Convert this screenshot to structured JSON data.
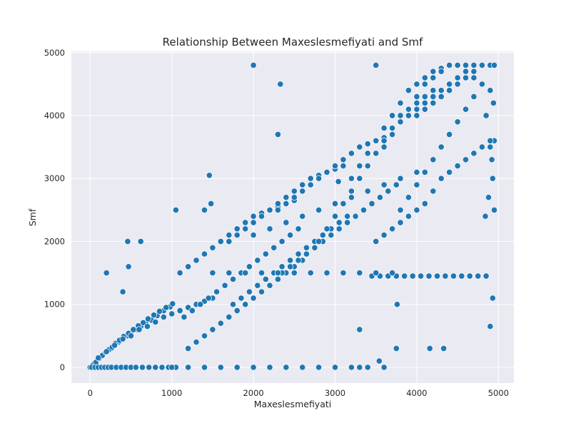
{
  "chart_data": {
    "type": "scatter",
    "title": "Relationship Between Maxeslesmefiyati and Smf",
    "xlabel": "Maxeslesmefiyati",
    "ylabel": "Smf",
    "xlim": [
      -230,
      5190
    ],
    "ylim": [
      -250,
      5020
    ],
    "xticks": [
      0,
      1000,
      2000,
      3000,
      4000,
      5000
    ],
    "yticks": [
      0,
      1000,
      2000,
      3000,
      4000,
      5000
    ],
    "grid": true,
    "legend": "none",
    "colors": {
      "point": "#1f77b4",
      "point_edge": "#ffffff",
      "background": "#eaeaf2",
      "grid": "#ffffff"
    },
    "series": [
      {
        "x": [
          0,
          40,
          90,
          120,
          160,
          200,
          260,
          300,
          350,
          400,
          450,
          500,
          560,
          620,
          680,
          750,
          820,
          900,
          980,
          30,
          70,
          110,
          150,
          190,
          230,
          270,
          310,
          360,
          410,
          470,
          530,
          590,
          650,
          710,
          780,
          850,
          930,
          1010,
          20,
          60,
          100,
          140,
          180,
          220,
          260,
          320,
          380,
          440,
          500,
          560,
          640,
          720,
          800,
          880,
          960,
          1050,
          100,
          200,
          300,
          400,
          500,
          600,
          700,
          800,
          900,
          1000,
          1100,
          1200,
          1300,
          1400,
          1500,
          1100,
          1200,
          1300,
          1400,
          1500,
          1600,
          1700,
          1800,
          1900,
          2000,
          2100,
          2200,
          2300,
          2400,
          2500,
          1150,
          1250,
          1350,
          1450,
          1550,
          1650,
          1750,
          1850,
          1950,
          2050,
          2150,
          2250,
          2350,
          2450,
          2550,
          1200,
          1300,
          1400,
          1500,
          1600,
          1700,
          1800,
          1900,
          2000,
          2100,
          2200,
          2300,
          2400,
          2500,
          2600,
          1700,
          1800,
          1900,
          2000,
          2100,
          2200,
          2300,
          2400,
          2500,
          2600,
          2700,
          2800,
          2900,
          3000,
          3100,
          1750,
          1850,
          1950,
          2050,
          2150,
          2250,
          2350,
          2450,
          2550,
          2650,
          2750,
          2850,
          2950,
          3050,
          3150,
          2300,
          2400,
          2500,
          2600,
          2700,
          2800,
          2900,
          3000,
          3100,
          3200,
          3300,
          3400,
          3500,
          3600,
          3700,
          2350,
          2450,
          2550,
          2650,
          2750,
          2850,
          2950,
          3050,
          3150,
          3250,
          3350,
          3450,
          3550,
          3650,
          3750,
          2800,
          2900,
          3000,
          3100,
          3200,
          3300,
          3400,
          3500,
          3600,
          3700,
          3800,
          3900,
          4000,
          4100,
          4200,
          3200,
          3300,
          3400,
          3500,
          3600,
          3700,
          3800,
          3900,
          4000,
          4100,
          4200,
          4300,
          4400,
          4500,
          4600,
          3600,
          3700,
          3800,
          3900,
          4000,
          4100,
          4200,
          4300,
          4400,
          4500,
          4600,
          4700,
          4800,
          4900,
          4950,
          3800,
          3900,
          4000,
          4100,
          4200,
          4300,
          4400,
          4500,
          4600,
          4700,
          4800,
          4850,
          4900,
          4930,
          4950,
          3450,
          3550,
          3650,
          3750,
          3850,
          3950,
          4050,
          4150,
          4250,
          4350,
          4450,
          4550,
          4650,
          4750,
          4850,
          4000,
          4100,
          4200,
          4300,
          4400,
          4500,
          4600,
          4700,
          4800,
          4900,
          4940,
          4950,
          4920,
          4880,
          4840,
          3500,
          3600,
          3700,
          3800,
          3900,
          4000,
          4100,
          4200,
          4300,
          4400,
          4500,
          4600,
          4700,
          4800,
          4900,
          3300,
          3400,
          3500,
          3600,
          3700,
          3800,
          3900,
          4000,
          4100,
          4200,
          4300,
          4400,
          4500,
          4600,
          4700,
          1000,
          1200,
          1400,
          1600,
          1800,
          2000,
          2200,
          2400,
          2600,
          2800,
          3000,
          3200,
          3400,
          3600,
          1500,
          1700,
          1900,
          2100,
          2300,
          2500,
          2700,
          2900,
          3100,
          3300,
          3500,
          3700,
          2000,
          2200,
          2400,
          2600,
          2800,
          3000,
          3200,
          3400,
          3600,
          3800,
          4000,
          200,
          400,
          460,
          470,
          620,
          1050,
          1460,
          1400,
          1480,
          2000,
          2330,
          2300,
          3040,
          3300,
          4900,
          4930,
          4160,
          4330,
          3300,
          3540,
          3750,
          3760,
          3600,
          3500
        ],
        "y": [
          0,
          50,
          120,
          150,
          200,
          250,
          300,
          350,
          400,
          450,
          500,
          550,
          600,
          650,
          700,
          750,
          820,
          900,
          960,
          30,
          80,
          140,
          190,
          240,
          280,
          320,
          380,
          430,
          490,
          540,
          600,
          660,
          710,
          770,
          830,
          890,
          950,
          1010,
          0,
          0,
          0,
          0,
          0,
          0,
          0,
          0,
          0,
          0,
          0,
          0,
          0,
          0,
          0,
          0,
          0,
          0,
          150,
          250,
          350,
          450,
          500,
          600,
          650,
          720,
          800,
          850,
          900,
          950,
          1000,
          1050,
          1100,
          1500,
          1600,
          1700,
          1800,
          1900,
          2000,
          2100,
          2200,
          2300,
          2400,
          2450,
          2500,
          2550,
          2600,
          2650,
          800,
          900,
          1000,
          1100,
          1200,
          1300,
          1400,
          1500,
          1600,
          1700,
          1800,
          1900,
          2000,
          2100,
          2200,
          300,
          400,
          500,
          600,
          700,
          800,
          900,
          1000,
          1100,
          1200,
          1300,
          1400,
          1500,
          1600,
          1700,
          2000,
          2100,
          2200,
          2300,
          2400,
          2500,
          2600,
          2700,
          2800,
          2900,
          3000,
          3050,
          3100,
          3150,
          3200,
          1000,
          1100,
          1200,
          1300,
          1400,
          1500,
          1600,
          1700,
          1800,
          1900,
          2000,
          2100,
          2200,
          2300,
          2400,
          2500,
          2600,
          2700,
          2800,
          2900,
          3000,
          3100,
          3200,
          3300,
          3400,
          3500,
          3550,
          3600,
          3650,
          3700,
          1500,
          1600,
          1700,
          1800,
          1900,
          2000,
          2100,
          2200,
          2300,
          2400,
          2500,
          2600,
          2700,
          2800,
          2900,
          2000,
          2200,
          2400,
          2600,
          2800,
          3000,
          3200,
          3400,
          3600,
          3800,
          4000,
          4100,
          4200,
          4300,
          4400,
          3000,
          3200,
          3400,
          3600,
          3800,
          4000,
          4200,
          4400,
          4500,
          4600,
          4700,
          4750,
          4800,
          4800,
          4800,
          3500,
          3700,
          3900,
          4100,
          4300,
          4500,
          4600,
          4700,
          4800,
          4800,
          4800,
          4800,
          4800,
          4800,
          4800,
          2500,
          2700,
          2900,
          3100,
          3300,
          3500,
          3700,
          3900,
          4100,
          4300,
          4500,
          4000,
          3500,
          3000,
          2500,
          1450,
          1450,
          1450,
          1450,
          1450,
          1450,
          1450,
          1450,
          1450,
          1450,
          1450,
          1450,
          1450,
          1450,
          1450,
          4000,
          4100,
          4200,
          4300,
          4400,
          4500,
          4600,
          4600,
          4500,
          4400,
          4200,
          3600,
          3300,
          2700,
          2400,
          2000,
          2100,
          2200,
          2300,
          2400,
          2500,
          2600,
          2800,
          3000,
          3100,
          3200,
          3300,
          3400,
          3500,
          3600,
          3000,
          3200,
          3400,
          3600,
          3800,
          3900,
          4000,
          4100,
          4200,
          4300,
          4400,
          4500,
          4600,
          4700,
          4700,
          0,
          0,
          0,
          0,
          0,
          0,
          0,
          0,
          0,
          0,
          0,
          0,
          0,
          0,
          1500,
          1500,
          1500,
          1500,
          1500,
          1500,
          1500,
          1500,
          1500,
          1500,
          1500,
          1500,
          2100,
          2200,
          2300,
          2400,
          2500,
          2600,
          2700,
          2800,
          2900,
          3000,
          3100,
          1500,
          1200,
          2000,
          1600,
          2000,
          2500,
          3050,
          2500,
          2600,
          4800,
          4500,
          3700,
          2950,
          600,
          650,
          1100,
          300,
          300,
          0,
          100,
          300,
          1000,
          3500,
          4800
        ]
      }
    ]
  }
}
